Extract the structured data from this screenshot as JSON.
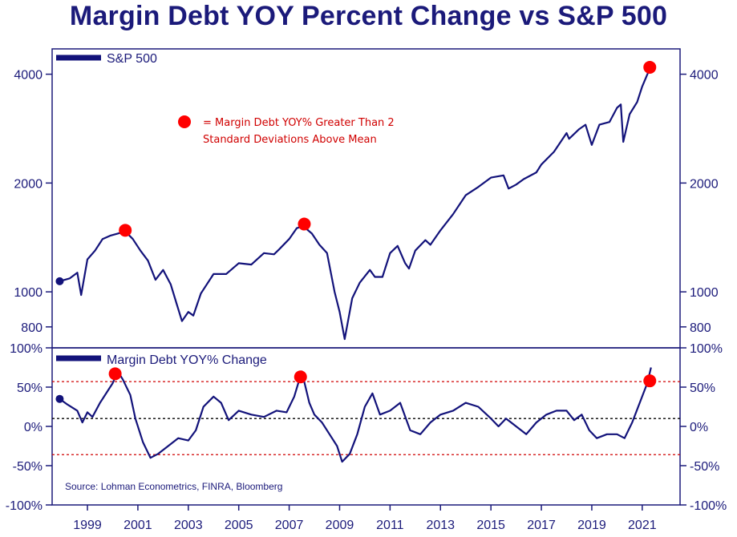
{
  "title": "Margin Debt YOY Percent Change vs S&P 500",
  "colors": {
    "title": "#1b1a7a",
    "line": "#12127a",
    "marker": "#ff0000",
    "reference_red": "#d00000",
    "reference_black": "#000000",
    "frame": "#1b1a7a"
  },
  "annotation": {
    "line1": "= Margin Debt YOY% Greater Than 2",
    "line2": "Standard Deviations Above Mean"
  },
  "source": "Source: Lohman Econometrics, FINRA, Bloomberg",
  "chart_data": [
    {
      "type": "line",
      "series": [
        {
          "name": "S&P 500"
        }
      ],
      "legend": "top-left",
      "yscale": "log",
      "ylim": [
        700,
        4700
      ],
      "xlim": [
        1997.6,
        2022.5
      ],
      "y_ticks": [
        800,
        1000,
        2000,
        4000
      ],
      "y_tick_labels": [
        "800",
        "1000",
        "2000",
        "4000"
      ],
      "x": [
        1997.9,
        1998.3,
        1998.6,
        1998.75,
        1999.0,
        1999.3,
        1999.6,
        1999.9,
        2000.2,
        2000.5,
        2000.8,
        2001.1,
        2001.4,
        2001.7,
        2002.0,
        2002.3,
        2002.55,
        2002.75,
        2003.0,
        2003.2,
        2003.5,
        2004.0,
        2004.5,
        2005.0,
        2005.5,
        2006.0,
        2006.4,
        2006.6,
        2007.0,
        2007.3,
        2007.55,
        2007.9,
        2008.2,
        2008.5,
        2008.8,
        2009.0,
        2009.2,
        2009.5,
        2009.8,
        2010.2,
        2010.4,
        2010.7,
        2011.0,
        2011.3,
        2011.6,
        2011.75,
        2012.0,
        2012.4,
        2012.6,
        2013.0,
        2013.5,
        2014.0,
        2014.5,
        2015.0,
        2015.5,
        2015.7,
        2016.0,
        2016.3,
        2016.8,
        2017.0,
        2017.5,
        2018.0,
        2018.1,
        2018.5,
        2018.75,
        2019.0,
        2019.3,
        2019.7,
        2020.0,
        2020.15,
        2020.25,
        2020.5,
        2020.8,
        2021.0,
        2021.3
      ],
      "values": [
        1070,
        1090,
        1130,
        980,
        1230,
        1300,
        1400,
        1430,
        1450,
        1470,
        1400,
        1300,
        1220,
        1080,
        1150,
        1050,
        920,
        830,
        880,
        860,
        990,
        1120,
        1120,
        1200,
        1190,
        1280,
        1270,
        1310,
        1400,
        1500,
        1520,
        1450,
        1350,
        1280,
        1000,
        880,
        740,
        960,
        1060,
        1150,
        1100,
        1100,
        1280,
        1340,
        1200,
        1160,
        1300,
        1390,
        1350,
        1480,
        1640,
        1850,
        1950,
        2070,
        2100,
        1930,
        1980,
        2050,
        2140,
        2250,
        2440,
        2750,
        2650,
        2820,
        2900,
        2550,
        2900,
        2950,
        3230,
        3300,
        2600,
        3100,
        3350,
        3700,
        4150
      ],
      "highlight_x": [
        2000.5,
        2007.6,
        2021.3
      ],
      "highlight_values": [
        1480,
        1540,
        4180
      ]
    },
    {
      "type": "line",
      "series": [
        {
          "name": "Margin Debt YOY% Change"
        }
      ],
      "legend": "top-left",
      "ylim": [
        -100,
        100
      ],
      "xlim": [
        1997.6,
        2022.5
      ],
      "y_ticks": [
        -100,
        -50,
        0,
        50,
        100
      ],
      "y_tick_labels": [
        "-100%",
        "-50%",
        "0%",
        "50%",
        "100%"
      ],
      "x_ticks": [
        1999,
        2001,
        2003,
        2005,
        2007,
        2009,
        2011,
        2013,
        2015,
        2017,
        2019,
        2021
      ],
      "x_tick_labels": [
        "1999",
        "2001",
        "2003",
        "2005",
        "2007",
        "2009",
        "2011",
        "2013",
        "2015",
        "2017",
        "2019",
        "2021"
      ],
      "reference_lines": [
        {
          "value": 57,
          "style": "dotted",
          "color": "red"
        },
        {
          "value": 10,
          "style": "dotted",
          "color": "black"
        },
        {
          "value": -36,
          "style": "dotted",
          "color": "red"
        }
      ],
      "x": [
        1997.9,
        1998.2,
        1998.6,
        1998.8,
        1999.0,
        1999.2,
        1999.5,
        1999.8,
        2000.0,
        2000.2,
        2000.4,
        2000.7,
        2000.9,
        2001.2,
        2001.5,
        2001.8,
        2002.2,
        2002.6,
        2003.0,
        2003.3,
        2003.6,
        2004.0,
        2004.3,
        2004.6,
        2005.0,
        2005.5,
        2006.0,
        2006.5,
        2006.9,
        2007.2,
        2007.5,
        2007.8,
        2008.0,
        2008.3,
        2008.6,
        2008.9,
        2009.1,
        2009.4,
        2009.7,
        2010.0,
        2010.3,
        2010.6,
        2011.0,
        2011.4,
        2011.8,
        2012.2,
        2012.6,
        2013.0,
        2013.5,
        2014.0,
        2014.5,
        2015.0,
        2015.3,
        2015.6,
        2016.0,
        2016.4,
        2016.8,
        2017.2,
        2017.6,
        2018.0,
        2018.3,
        2018.6,
        2018.9,
        2019.2,
        2019.6,
        2020.0,
        2020.3,
        2020.6,
        2020.9,
        2021.2,
        2021.35
      ],
      "values": [
        35,
        28,
        20,
        5,
        18,
        12,
        30,
        45,
        55,
        70,
        60,
        40,
        10,
        -20,
        -40,
        -35,
        -25,
        -15,
        -18,
        -5,
        25,
        38,
        30,
        8,
        20,
        15,
        12,
        20,
        18,
        38,
        70,
        30,
        15,
        5,
        -10,
        -25,
        -45,
        -35,
        -10,
        25,
        42,
        15,
        20,
        30,
        -5,
        -10,
        5,
        15,
        20,
        30,
        25,
        10,
        0,
        10,
        0,
        -10,
        5,
        15,
        20,
        20,
        8,
        15,
        -5,
        -15,
        -10,
        -10,
        -15,
        5,
        30,
        55,
        75
      ],
      "highlight_x": [
        2000.1,
        2007.45,
        2021.3
      ],
      "highlight_values": [
        67,
        63,
        58
      ]
    }
  ]
}
